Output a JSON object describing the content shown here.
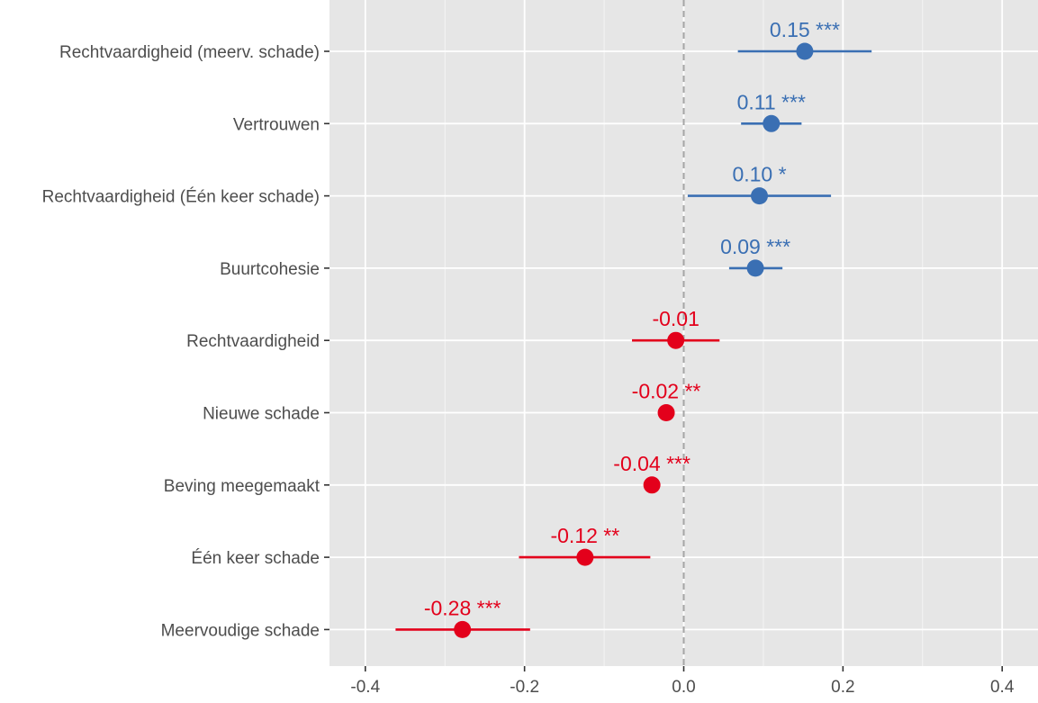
{
  "chart_data": {
    "type": "scatter",
    "subtype": "coefficient-plot",
    "title": "",
    "xlabel": "",
    "ylabel": "",
    "xlim": [
      -0.445,
      0.445
    ],
    "xticks": [
      -0.4,
      -0.2,
      0.0,
      0.2,
      0.4
    ],
    "xtick_labels": [
      "-0.4",
      "-0.2",
      "0.0",
      "0.2",
      "0.4"
    ],
    "reference_line": 0,
    "grid": true,
    "legend": "none",
    "colors": {
      "positive": "#3a6fb3",
      "negative": "#e3001b",
      "panel": "#e6e6e6",
      "grid": "#ffffff",
      "refline": "#a6a6a6"
    },
    "points": [
      {
        "category": "Rechtvaardigheid (meerv. schade)",
        "estimate": 0.152,
        "ci_low": 0.068,
        "ci_high": 0.236,
        "label": "0.15 ***",
        "sign": "positive"
      },
      {
        "category": "Vertrouwen",
        "estimate": 0.11,
        "ci_low": 0.072,
        "ci_high": 0.148,
        "label": "0.11 ***",
        "sign": "positive"
      },
      {
        "category": "Rechtvaardigheid (Één keer schade)",
        "estimate": 0.095,
        "ci_low": 0.005,
        "ci_high": 0.185,
        "label": "0.10 *",
        "sign": "positive"
      },
      {
        "category": "Buurtcohesie",
        "estimate": 0.09,
        "ci_low": 0.057,
        "ci_high": 0.124,
        "label": "0.09 ***",
        "sign": "positive"
      },
      {
        "category": "Rechtvaardigheid",
        "estimate": -0.01,
        "ci_low": -0.065,
        "ci_high": 0.045,
        "label": "-0.01",
        "sign": "negative"
      },
      {
        "category": "Nieuwe schade",
        "estimate": -0.022,
        "ci_low": -0.032,
        "ci_high": -0.012,
        "label": "-0.02 **",
        "sign": "negative"
      },
      {
        "category": "Beving meegemaakt",
        "estimate": -0.04,
        "ci_low": -0.05,
        "ci_high": -0.03,
        "label": "-0.04 ***",
        "sign": "negative"
      },
      {
        "category": "Één keer schade",
        "estimate": -0.124,
        "ci_low": -0.207,
        "ci_high": -0.042,
        "label": "-0.12 **",
        "sign": "negative"
      },
      {
        "category": "Meervoudige schade",
        "estimate": -0.278,
        "ci_low": -0.362,
        "ci_high": -0.193,
        "label": "-0.28 ***",
        "sign": "negative"
      }
    ]
  }
}
